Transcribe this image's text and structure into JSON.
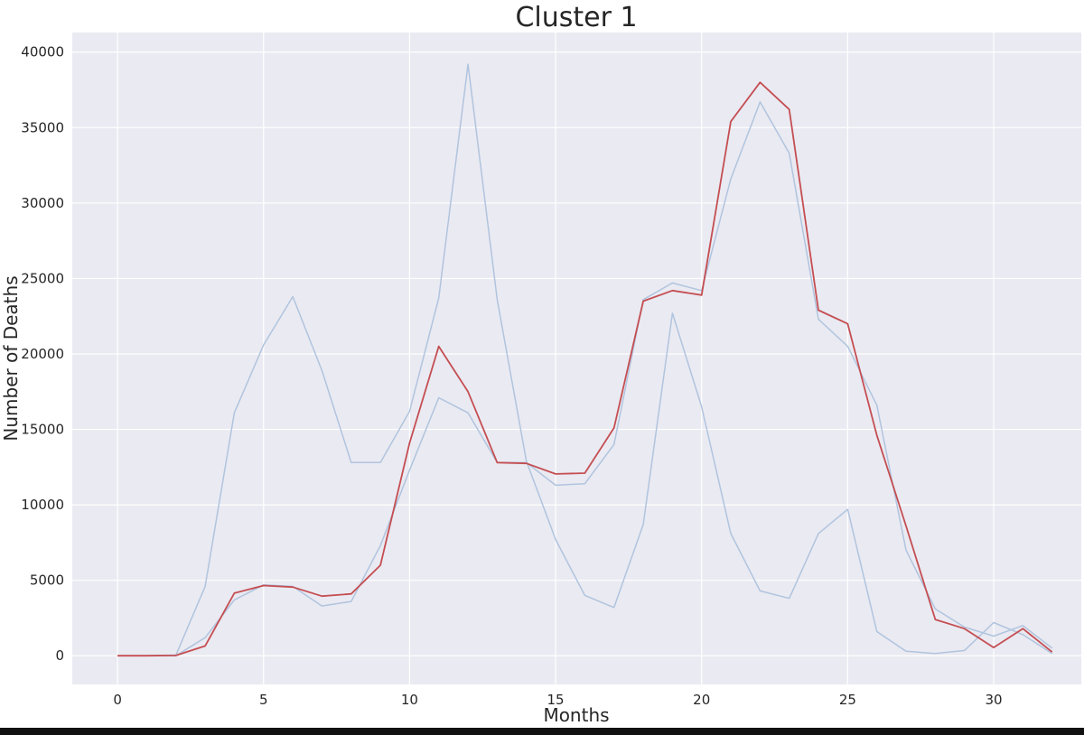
{
  "chart_data": {
    "type": "line",
    "title": "Cluster 1",
    "xlabel": "Months",
    "ylabel": "Number of Deaths",
    "xlim": [
      -1.55,
      33.0
    ],
    "ylim": [
      -1900,
      41300
    ],
    "xticks": [
      0,
      5,
      10,
      15,
      20,
      25,
      30
    ],
    "yticks": [
      0,
      5000,
      10000,
      15000,
      20000,
      25000,
      30000,
      35000,
      40000
    ],
    "grid": true,
    "background": "#eaeaf2",
    "x": [
      0,
      1,
      2,
      3,
      4,
      5,
      6,
      7,
      8,
      9,
      10,
      11,
      12,
      13,
      14,
      15,
      16,
      17,
      18,
      19,
      20,
      21,
      22,
      23,
      24,
      25,
      26,
      27,
      28,
      29,
      30,
      31,
      32
    ],
    "series": [
      {
        "role": "member",
        "color": "#b0c4de",
        "values": [
          0,
          0,
          50,
          4600,
          16100,
          20600,
          23800,
          18900,
          12800,
          12800,
          16200,
          23700,
          39200,
          23600,
          12900,
          7700,
          4000,
          3200,
          8700,
          22700,
          16500,
          8100,
          4300,
          3800,
          8100,
          9700,
          1600,
          300,
          150,
          350,
          2200,
          1400,
          150
        ]
      },
      {
        "role": "member",
        "color": "#b0c4de",
        "values": [
          0,
          0,
          0,
          1200,
          3700,
          4700,
          4600,
          3300,
          3600,
          7300,
          12300,
          17100,
          16100,
          12800,
          12800,
          11300,
          11400,
          14000,
          23600,
          24700,
          24200,
          31600,
          36700,
          33300,
          22300,
          20500,
          16600,
          7000,
          3100,
          1900,
          1300,
          2000,
          500
        ]
      },
      {
        "role": "mean",
        "color": "#c44e52",
        "values": [
          0,
          0,
          20,
          650,
          4150,
          4650,
          4550,
          3950,
          4100,
          6000,
          14100,
          20500,
          17500,
          12800,
          12750,
          12050,
          12100,
          15100,
          23500,
          24200,
          23900,
          35400,
          38000,
          36200,
          22900,
          22000,
          14600,
          8600,
          2400,
          1800,
          550,
          1800,
          250
        ]
      }
    ]
  }
}
